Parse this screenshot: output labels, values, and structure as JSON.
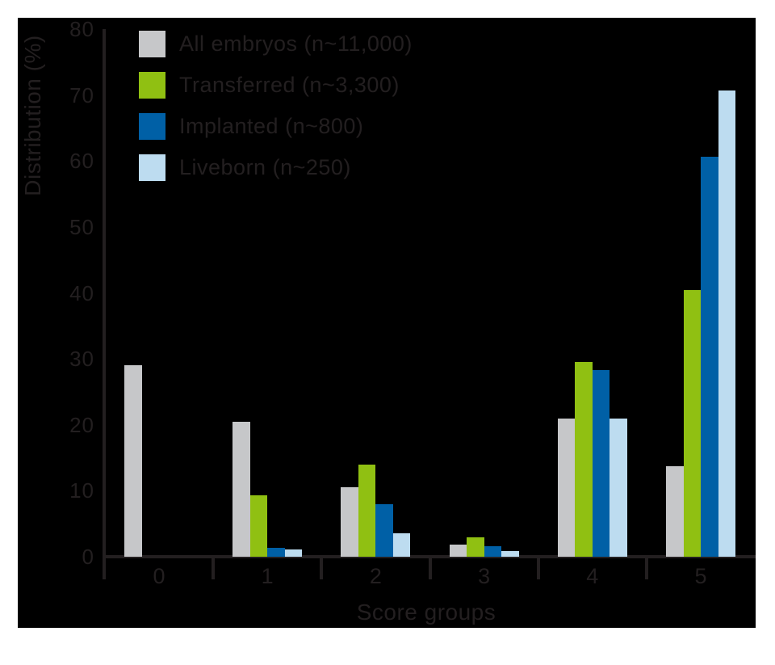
{
  "page": {
    "background": "#ffffff"
  },
  "plot": {
    "background": "#000000",
    "axis_color": "#231f20",
    "text_color": "#231f20"
  },
  "chart_data": {
    "type": "bar",
    "title": "",
    "xlabel": "Score groups",
    "ylabel": "Distribution (%)",
    "categories": [
      "0",
      "1",
      "2",
      "3",
      "4",
      "5"
    ],
    "series": [
      {
        "name": "All embryos (n~11,000)",
        "color": "#c6c7c9",
        "values": [
          29,
          20.5,
          10.5,
          1.8,
          21,
          13.7
        ]
      },
      {
        "name": "Transferred (n~3,300)",
        "color": "#90c012",
        "values": [
          0,
          9.3,
          14,
          3,
          29.5,
          40.4
        ]
      },
      {
        "name": "Implanted (n~800)",
        "color": "#0060a6",
        "values": [
          0,
          1.4,
          8,
          1.6,
          28.3,
          60.6
        ]
      },
      {
        "name": "Liveborn (n~250)",
        "color": "#bddcf0",
        "values": [
          0,
          1.1,
          3.5,
          0.8,
          21,
          70.7
        ]
      }
    ],
    "ylim": [
      0,
      80
    ],
    "yticks": [
      0,
      10,
      20,
      30,
      40,
      50,
      60,
      70,
      80
    ],
    "grid": false,
    "legend_position": "top-left"
  }
}
